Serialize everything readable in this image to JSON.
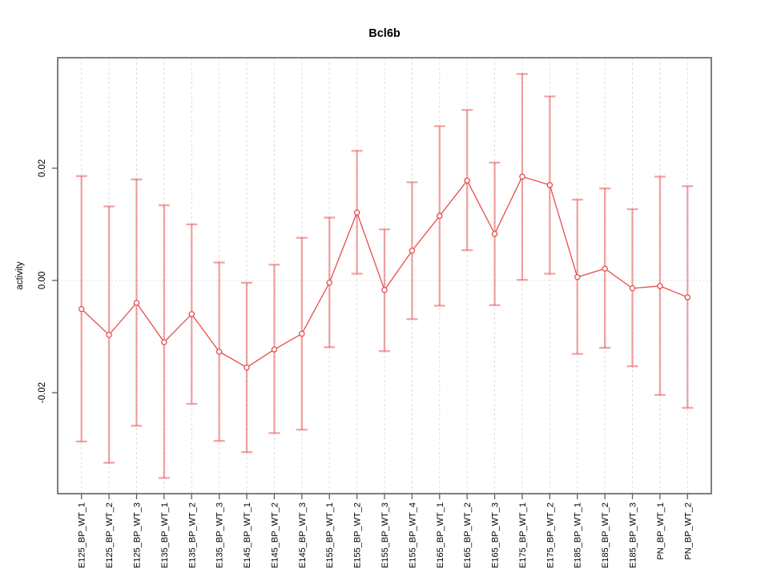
{
  "chart_data": {
    "type": "line",
    "marker": "open-circle",
    "error_bars": true,
    "title": "Bcl6b",
    "xlabel": "",
    "ylabel": "activity",
    "legend": "none",
    "grid": "vertical-dashed-per-category, dotted-zero-line",
    "categories": [
      "E125_BP_WT_1",
      "E125_BP_WT_2",
      "E125_BP_WT_3",
      "E135_BP_WT_1",
      "E135_BP_WT_2",
      "E135_BP_WT_3",
      "E145_BP_WT_1",
      "E145_BP_WT_2",
      "E145_BP_WT_3",
      "E155_BP_WT_1",
      "E155_BP_WT_2",
      "E155_BP_WT_3",
      "E155_BP_WT_4",
      "E165_BP_WT_1",
      "E165_BP_WT_2",
      "E165_BP_WT_3",
      "E175_BP_WT_1",
      "E175_BP_WT_2",
      "E185_BP_WT_1",
      "E185_BP_WT_2",
      "E185_BP_WT_3",
      "PN_BP_WT_1",
      "PN_BP_WT_2"
    ],
    "values": [
      -0.0051,
      -0.0097,
      -0.004,
      -0.011,
      -0.006,
      -0.0127,
      -0.0155,
      -0.0123,
      -0.0095,
      -0.0004,
      0.0121,
      -0.0017,
      0.0053,
      0.0115,
      0.0178,
      0.0083,
      0.0185,
      0.017,
      0.0006,
      0.0021,
      -0.0014,
      -0.001,
      -0.003
    ],
    "error_high": [
      0.0186,
      0.0132,
      0.018,
      0.0134,
      0.01,
      0.0032,
      -0.0004,
      0.0028,
      0.0076,
      0.0112,
      0.0231,
      0.0091,
      0.0175,
      0.0275,
      0.0304,
      0.021,
      0.0368,
      0.0328,
      0.0144,
      0.0164,
      0.0127,
      0.0185,
      0.0168
    ],
    "error_low": [
      -0.0287,
      -0.0325,
      -0.0259,
      -0.0352,
      -0.022,
      -0.0286,
      -0.0306,
      -0.0272,
      -0.0266,
      -0.0119,
      0.0012,
      -0.0126,
      -0.0069,
      -0.0045,
      0.0054,
      -0.0044,
      0.0001,
      0.0012,
      -0.0131,
      -0.012,
      -0.0153,
      -0.0204,
      -0.0227
    ],
    "yticks": [
      -0.02,
      0,
      0.02
    ],
    "ytick_labels": [
      "-0.02",
      "0.00",
      "0.02"
    ],
    "ylim": [
      -0.038,
      0.0397
    ],
    "colors": {
      "series": "#e84c4c",
      "error_bar": "rgba(232,76,76,0.5)",
      "grid": "#dcdcdc",
      "axis": "#5f5f5f",
      "text": "#000000",
      "background": "#ffffff"
    }
  }
}
